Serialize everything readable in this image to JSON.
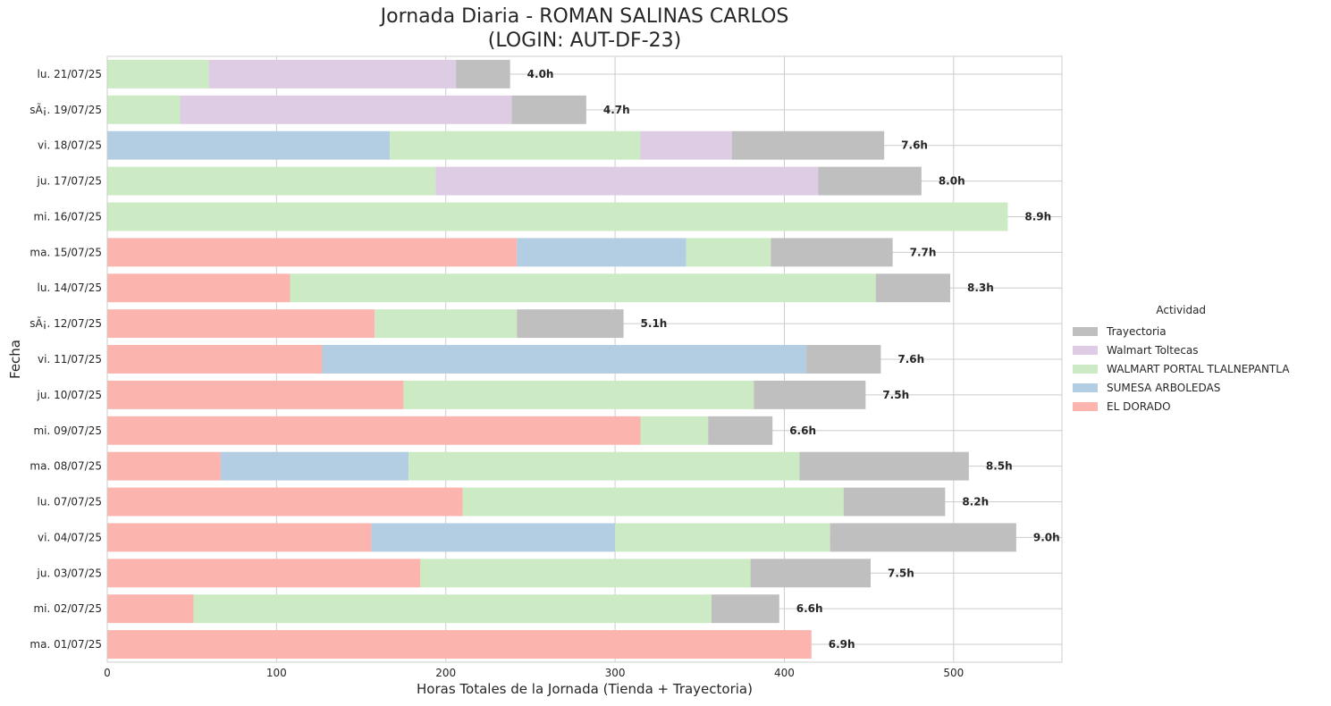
{
  "chart_data": {
    "type": "bar",
    "orientation": "horizontal",
    "stacked": true,
    "title_line1": "Jornada Diaria - ROMAN SALINAS CARLOS",
    "title_line2": "(LOGIN: AUT-DF-23)",
    "xlabel": "Horas Totales de la Jornada (Tienda + Trayectoria)",
    "ylabel": "Fecha",
    "xlim": [
      0,
      564
    ],
    "xticks": [
      0,
      100,
      200,
      300,
      400,
      500
    ],
    "grid": true,
    "legend_title": "Actividad",
    "legend_position": "center-right",
    "legend_order": [
      "Trayectoria",
      "Walmart Toltecas",
      "WALMART PORTAL TLALNEPANTLA",
      "SUMESA ARBOLEDAS",
      "EL DORADO"
    ],
    "stack_order": [
      "EL DORADO",
      "SUMESA ARBOLEDAS",
      "WALMART PORTAL TLALNEPANTLA",
      "Walmart Toltecas",
      "Trayectoria"
    ],
    "colors": {
      "EL DORADO": "#fbb4ae",
      "SUMESA ARBOLEDAS": "#b3cde3",
      "WALMART PORTAL TLALNEPANTLA": "#ccebc5",
      "Walmart Toltecas": "#decbe4",
      "Trayectoria": "#bfbfbf"
    },
    "categories": [
      "lu. 21/07/25",
      "sÃ¡. 19/07/25",
      "vi. 18/07/25",
      "ju. 17/07/25",
      "mi. 16/07/25",
      "ma. 15/07/25",
      "lu. 14/07/25",
      "sÃ¡. 12/07/25",
      "vi. 11/07/25",
      "ju. 10/07/25",
      "mi. 09/07/25",
      "ma. 08/07/25",
      "lu. 07/07/25",
      "vi. 04/07/25",
      "ju. 03/07/25",
      "mi. 02/07/25",
      "ma. 01/07/25"
    ],
    "series": [
      {
        "name": "EL DORADO",
        "values": [
          0,
          0,
          0,
          0,
          0,
          242,
          108,
          158,
          127,
          175,
          315,
          67,
          210,
          156,
          185,
          51,
          416
        ]
      },
      {
        "name": "SUMESA ARBOLEDAS",
        "values": [
          0,
          0,
          167,
          0,
          0,
          100,
          0,
          0,
          286,
          0,
          0,
          111,
          0,
          144,
          0,
          0,
          0
        ]
      },
      {
        "name": "WALMART PORTAL TLALNEPANTLA",
        "values": [
          60,
          43,
          148,
          194,
          532,
          50,
          346,
          84,
          0,
          207,
          40,
          231,
          225,
          127,
          195,
          306,
          0
        ]
      },
      {
        "name": "Walmart Toltecas",
        "values": [
          146,
          196,
          54,
          226,
          0,
          0,
          0,
          0,
          0,
          0,
          0,
          0,
          0,
          0,
          0,
          0,
          0
        ]
      },
      {
        "name": "Trayectoria",
        "values": [
          32,
          44,
          90,
          61,
          0,
          72,
          44,
          63,
          44,
          66,
          38,
          100,
          60,
          110,
          71,
          40,
          0
        ]
      }
    ],
    "total_labels": [
      "4.0h",
      "4.7h",
      "7.6h",
      "8.0h",
      "8.9h",
      "7.7h",
      "8.3h",
      "5.1h",
      "7.6h",
      "7.5h",
      "6.6h",
      "8.5h",
      "8.2h",
      "9.0h",
      "7.5h",
      "6.6h",
      "6.9h"
    ]
  }
}
